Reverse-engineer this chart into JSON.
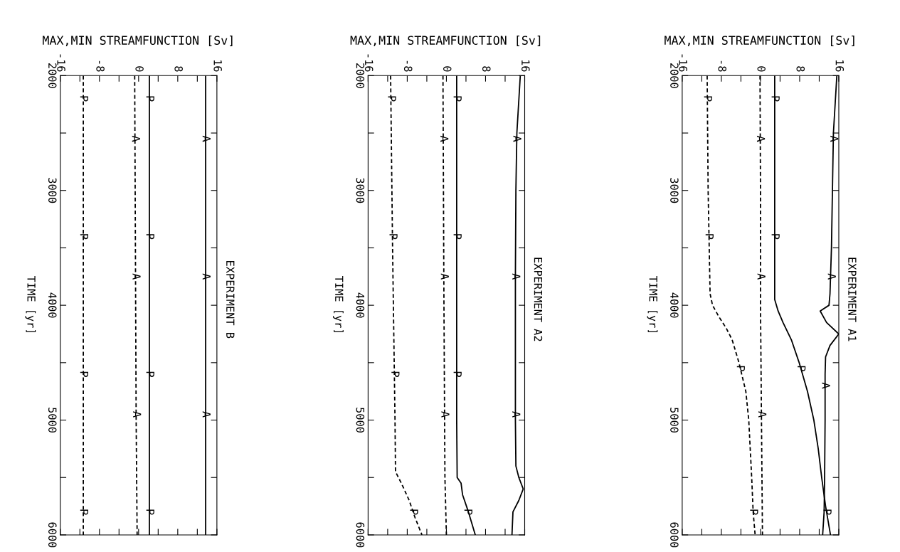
{
  "chart_data": [
    {
      "type": "line",
      "orientation": "horizontal",
      "title": "EXPERIMENT B",
      "xlabel": "MAX,MIN STREAMFUNCTION [Sv]",
      "ylabel": "TIME [yr]",
      "xlim": [
        -16,
        16
      ],
      "xticks": [
        -16,
        {
          "value": -12,
          "label": null
        },
        -8,
        {
          "value": -4,
          "label": null
        },
        0,
        {
          "value": 4,
          "label": null
        },
        8,
        {
          "value": 12,
          "label": null
        },
        16
      ],
      "ylim": [
        6000,
        2000
      ],
      "yticks": [
        2000,
        {
          "value": 2500,
          "label": null
        },
        3000,
        {
          "value": 3500,
          "label": null
        },
        4000,
        {
          "value": 4500,
          "label": null
        },
        5000,
        {
          "value": 5500,
          "label": null
        },
        6000
      ],
      "series": [
        {
          "color": "#000000",
          "line_style": "solid",
          "x": [
            2000,
            3000,
            4000,
            5000,
            6000
          ],
          "values": [
            13.7,
            13.7,
            13.7,
            13.7,
            13.7
          ]
        },
        {
          "color": "#000000",
          "line_style": "solid",
          "x": [
            2000,
            3000,
            4000,
            5000,
            6000
          ],
          "values": [
            2.2,
            2.2,
            2.2,
            2.2,
            2.2
          ]
        },
        {
          "color": "#000000",
          "line_style": "dashed",
          "x": [
            2000,
            3000,
            4000,
            5000,
            6000
          ],
          "values": [
            -0.8,
            -0.7,
            -0.6,
            -0.5,
            -0.3
          ]
        },
        {
          "color": "#000000",
          "line_style": "dashed",
          "x": [
            2000,
            3000,
            4000,
            5000,
            6000
          ],
          "values": [
            -11.3,
            -11.3,
            -11.3,
            -11.3,
            -11.3
          ]
        }
      ],
      "annotations": [
        {
          "text": "A",
          "x": 13.7,
          "y": 2550
        },
        {
          "text": "A",
          "x": 13.7,
          "y": 3750
        },
        {
          "text": "A",
          "x": 13.7,
          "y": 4950
        },
        {
          "text": "P",
          "x": 2.2,
          "y": 2200
        },
        {
          "text": "P",
          "x": 2.2,
          "y": 3400
        },
        {
          "text": "P",
          "x": 2.2,
          "y": 4600
        },
        {
          "text": "P",
          "x": 2.2,
          "y": 5800
        },
        {
          "text": "A",
          "x": -0.7,
          "y": 2550
        },
        {
          "text": "A",
          "x": -0.6,
          "y": 3750
        },
        {
          "text": "A",
          "x": -0.5,
          "y": 4950
        },
        {
          "text": "P",
          "x": -11.3,
          "y": 2200
        },
        {
          "text": "P",
          "x": -11.3,
          "y": 3400
        },
        {
          "text": "P",
          "x": -11.3,
          "y": 4600
        },
        {
          "text": "P",
          "x": -11.3,
          "y": 5800
        }
      ]
    },
    {
      "type": "line",
      "orientation": "horizontal",
      "title": "EXPERIMENT A2",
      "xlabel": "MAX,MIN STREAMFUNCTION [Sv]",
      "ylabel": "TIME [yr]",
      "xlim": [
        -16,
        16
      ],
      "xticks": [
        -16,
        {
          "value": -12,
          "label": null
        },
        -8,
        {
          "value": -4,
          "label": null
        },
        0,
        {
          "value": 4,
          "label": null
        },
        8,
        {
          "value": 12,
          "label": null
        },
        16
      ],
      "ylim": [
        6000,
        2000
      ],
      "yticks": [
        2000,
        {
          "value": 2500,
          "label": null
        },
        3000,
        {
          "value": 3500,
          "label": null
        },
        4000,
        {
          "value": 4500,
          "label": null
        },
        5000,
        {
          "value": 5500,
          "label": null
        },
        6000
      ],
      "series": [
        {
          "color": "#000000",
          "line_style": "solid",
          "x": [
            2000,
            2500,
            3000,
            3750,
            4500,
            5000,
            5400,
            5500,
            5600,
            5700,
            5800,
            6000
          ],
          "values": [
            15.1,
            14.4,
            14.2,
            14.1,
            14.1,
            14.1,
            14.2,
            14.8,
            15.7,
            14.8,
            13.6,
            13.4
          ]
        },
        {
          "color": "#000000",
          "line_style": "solid",
          "x": [
            2000,
            3000,
            4000,
            5000,
            5500,
            5550,
            5650,
            5800,
            6000
          ],
          "values": [
            2.1,
            2.1,
            2.1,
            2.1,
            2.2,
            3.0,
            3.3,
            4.5,
            5.9
          ]
        },
        {
          "color": "#000000",
          "line_style": "dashed",
          "x": [
            2000,
            4000,
            5500,
            6000
          ],
          "values": [
            -0.7,
            -0.5,
            -0.3,
            0.0
          ]
        },
        {
          "color": "#000000",
          "line_style": "dashed",
          "x": [
            2000,
            3500,
            5000,
            5450,
            5550,
            5700,
            5850,
            6000
          ],
          "values": [
            -11.4,
            -11.0,
            -10.5,
            -10.4,
            -9.2,
            -7.6,
            -6.4,
            -5.0
          ]
        }
      ],
      "annotations": [
        {
          "text": "A",
          "x": 14.3,
          "y": 2550
        },
        {
          "text": "A",
          "x": 14.1,
          "y": 3750
        },
        {
          "text": "A",
          "x": 14.1,
          "y": 4950
        },
        {
          "text": "P",
          "x": 2.1,
          "y": 2200
        },
        {
          "text": "P",
          "x": 2.1,
          "y": 3400
        },
        {
          "text": "P",
          "x": 2.1,
          "y": 4600
        },
        {
          "text": "P",
          "x": 4.3,
          "y": 5800
        },
        {
          "text": "A",
          "x": -0.6,
          "y": 2550
        },
        {
          "text": "A",
          "x": -0.5,
          "y": 3750
        },
        {
          "text": "A",
          "x": -0.4,
          "y": 4950
        },
        {
          "text": "P",
          "x": -11.3,
          "y": 2200
        },
        {
          "text": "P",
          "x": -11.0,
          "y": 3400
        },
        {
          "text": "P",
          "x": -10.6,
          "y": 4600
        },
        {
          "text": "P",
          "x": -6.8,
          "y": 5800
        }
      ]
    },
    {
      "type": "line",
      "orientation": "horizontal",
      "title": "EXPERIMENT A1",
      "xlabel": "MAX,MIN STREAMFUNCTION [Sv]",
      "ylabel": "TIME [yr]",
      "xlim": [
        -16,
        16
      ],
      "xticks": [
        -16,
        {
          "value": -12,
          "label": null
        },
        -8,
        {
          "value": -4,
          "label": null
        },
        0,
        {
          "value": 4,
          "label": null
        },
        8,
        {
          "value": 12,
          "label": null
        },
        16
      ],
      "ylim": [
        6000,
        2000
      ],
      "yticks": [
        2000,
        {
          "value": 2500,
          "label": null
        },
        3000,
        {
          "value": 3500,
          "label": null
        },
        4000,
        {
          "value": 4500,
          "label": null
        },
        5000,
        {
          "value": 5500,
          "label": null
        },
        6000
      ],
      "series": [
        {
          "color": "#000000",
          "line_style": "solid",
          "x": [
            2000,
            2500,
            3000,
            3500,
            3900,
            4000,
            4050,
            4150,
            4250,
            4350,
            4450,
            4600,
            5000,
            5500,
            5800,
            6000
          ],
          "values": [
            15.6,
            14.9,
            14.7,
            14.5,
            14.2,
            14.0,
            12.2,
            13.5,
            16.0,
            14.2,
            13.3,
            13.2,
            13.2,
            13.1,
            13.0,
            12.7
          ]
        },
        {
          "color": "#000000",
          "line_style": "solid",
          "x": [
            2000,
            3000,
            3950,
            4050,
            4150,
            4300,
            4500,
            4750,
            5000,
            5250,
            5500,
            5750,
            6000
          ],
          "values": [
            2.9,
            2.9,
            2.9,
            3.6,
            4.6,
            6.3,
            7.9,
            9.6,
            10.9,
            11.8,
            12.5,
            13.3,
            14.3
          ]
        },
        {
          "color": "#000000",
          "line_style": "dashed",
          "x": [
            2000,
            3000,
            4000,
            5000,
            5500,
            6000
          ],
          "values": [
            -0.1,
            0.0,
            0.0,
            0.2,
            0.3,
            0.4
          ]
        },
        {
          "color": "#000000",
          "line_style": "dashed",
          "x": [
            2000,
            3000,
            3900,
            4000,
            4100,
            4200,
            4300,
            4500,
            4750,
            5000,
            5500,
            5800,
            6000
          ],
          "values": [
            -10.9,
            -10.7,
            -10.3,
            -9.8,
            -8.5,
            -7.0,
            -5.8,
            -4.4,
            -3.0,
            -2.4,
            -1.8,
            -1.5,
            -1.1
          ]
        }
      ],
      "annotations": [
        {
          "text": "A",
          "x": 14.9,
          "y": 2550
        },
        {
          "text": "A",
          "x": 14.4,
          "y": 3750
        },
        {
          "text": "A",
          "x": 13.2,
          "y": 4700
        },
        {
          "text": "P",
          "x": 2.9,
          "y": 2200
        },
        {
          "text": "P",
          "x": 2.9,
          "y": 3400
        },
        {
          "text": "P",
          "x": 8.2,
          "y": 4550
        },
        {
          "text": "P",
          "x": 13.5,
          "y": 5800
        },
        {
          "text": "A",
          "x": -0.1,
          "y": 2550
        },
        {
          "text": "A",
          "x": 0.0,
          "y": 3750
        },
        {
          "text": "A",
          "x": 0.2,
          "y": 4950
        },
        {
          "text": "P",
          "x": -10.9,
          "y": 2200
        },
        {
          "text": "P",
          "x": -10.6,
          "y": 3400
        },
        {
          "text": "P",
          "x": -4.2,
          "y": 4550
        },
        {
          "text": "P",
          "x": -1.5,
          "y": 5800
        }
      ]
    }
  ]
}
